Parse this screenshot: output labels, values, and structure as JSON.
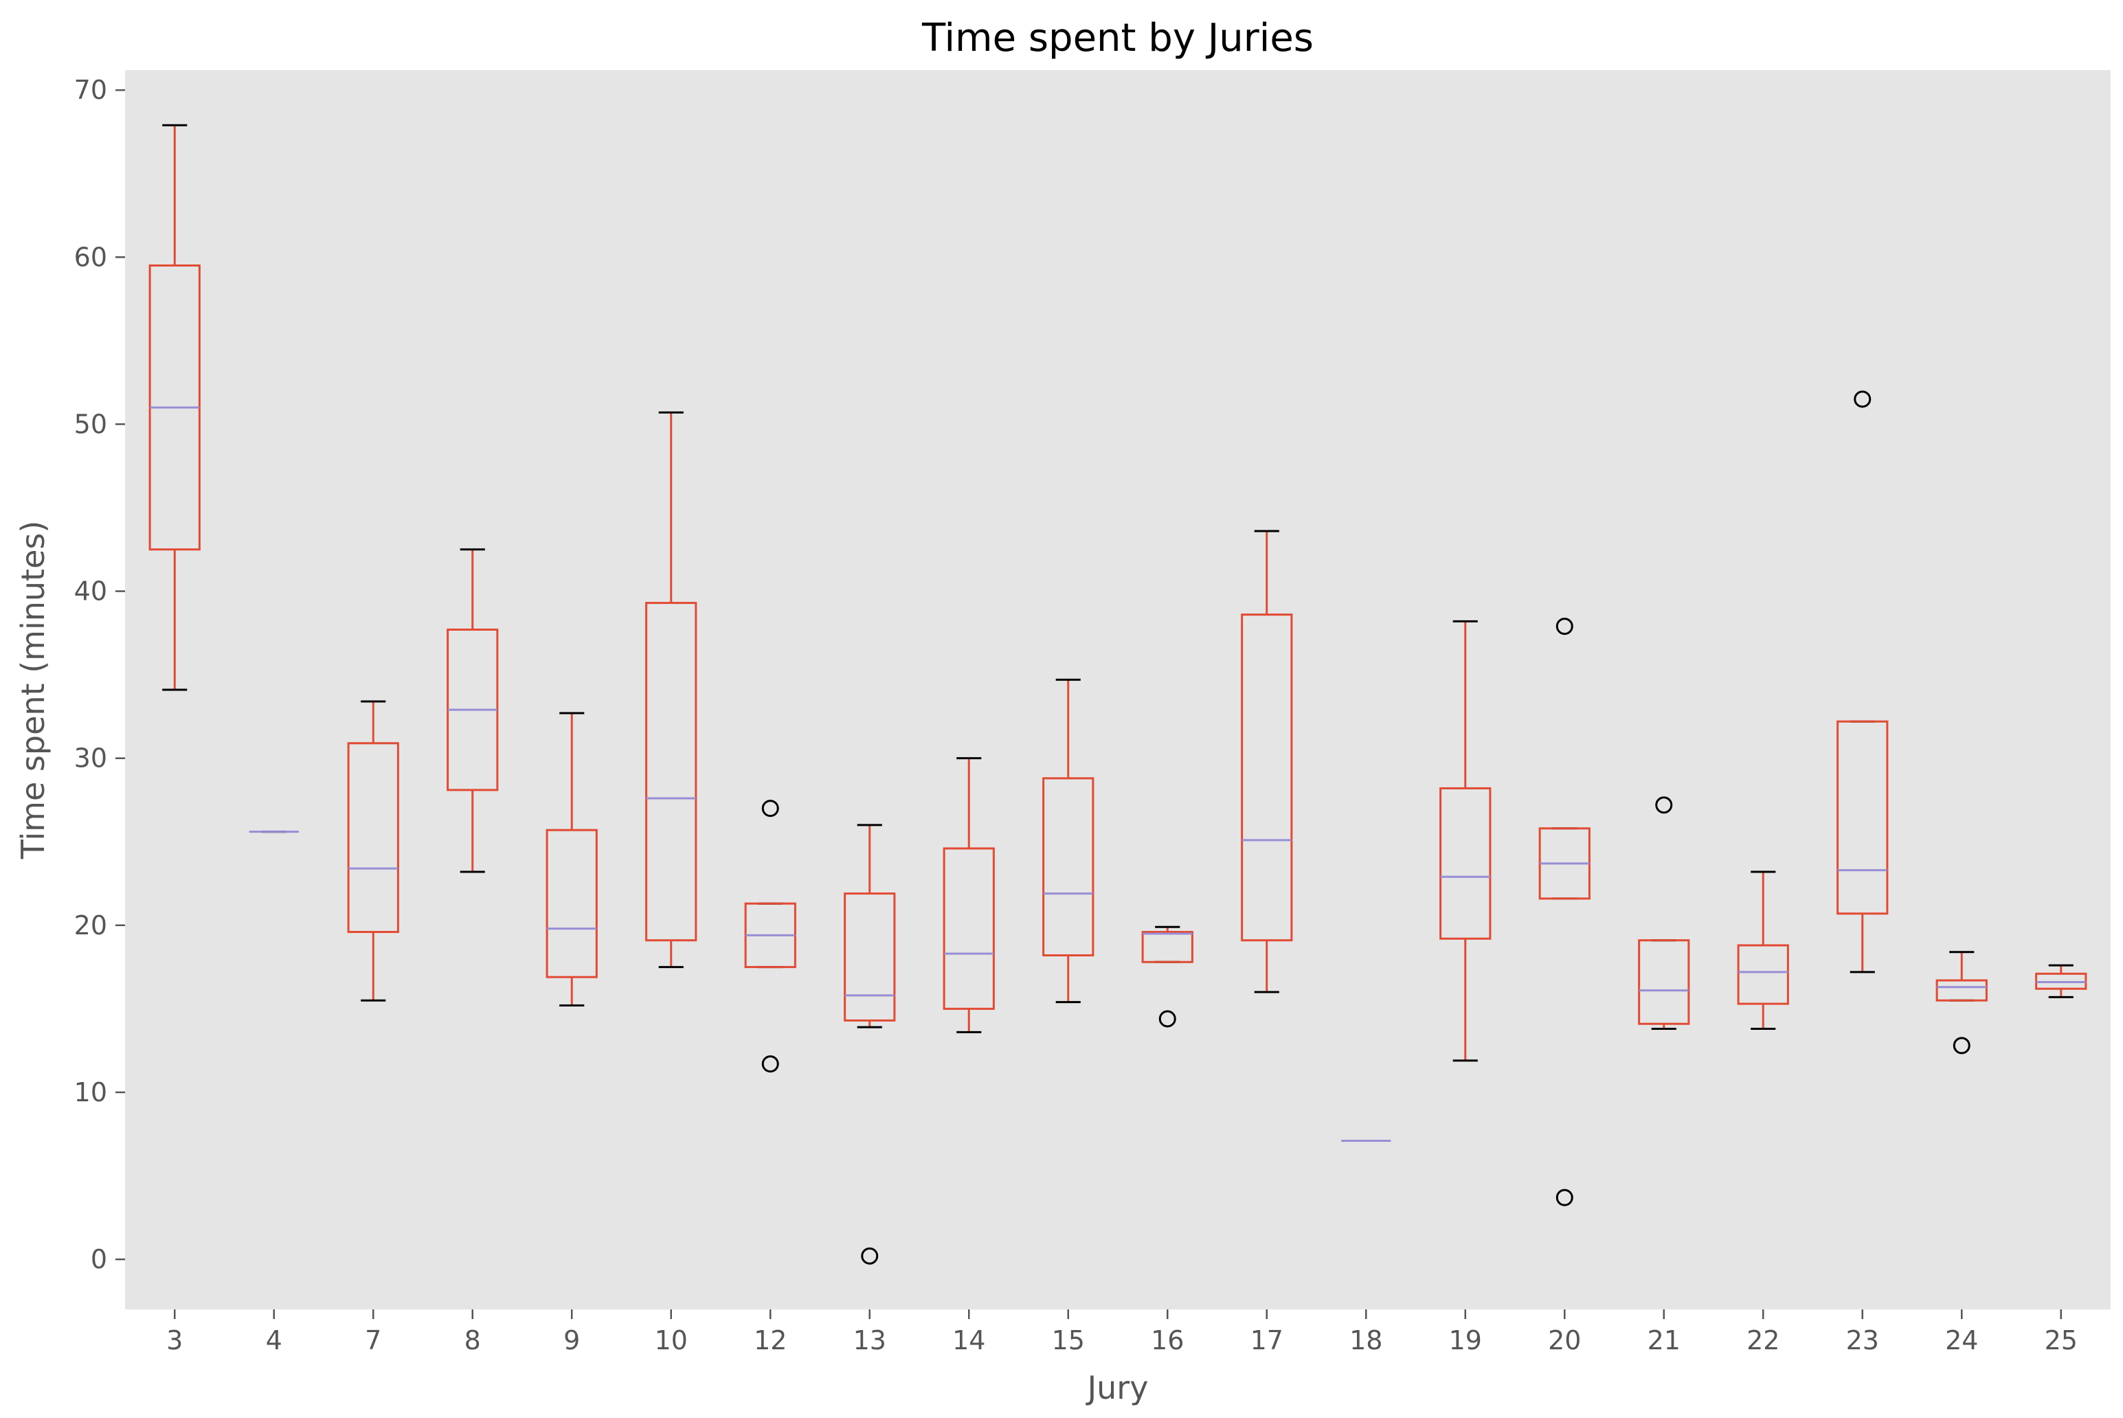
{
  "chart_data": {
    "type": "box",
    "title": "Time spent by Juries",
    "xlabel": "Jury",
    "ylabel": "Time spent (minutes)",
    "ylim": [
      -3,
      71.2
    ],
    "yticks": [
      0,
      10,
      20,
      30,
      40,
      50,
      60,
      70
    ],
    "grid": false,
    "colors": {
      "box": "#E24A33",
      "median": "#8EBA42",
      "median_display": "#988ED5",
      "whisker": "#E24A33",
      "cap": "#000000",
      "flier": "#000000",
      "background": "#E5E5E5"
    },
    "categories": [
      "3",
      "4",
      "7",
      "8",
      "9",
      "10",
      "12",
      "13",
      "14",
      "15",
      "16",
      "17",
      "18",
      "19",
      "20",
      "21",
      "22",
      "23",
      "24",
      "25"
    ],
    "boxes": [
      {
        "category": "3",
        "whislo": 34.1,
        "q1": 42.5,
        "med": 51.0,
        "q3": 59.5,
        "whishi": 67.9,
        "fliers": []
      },
      {
        "category": "4",
        "whislo": 25.6,
        "q1": 25.6,
        "med": 25.6,
        "q3": 25.6,
        "whishi": 25.6,
        "fliers": []
      },
      {
        "category": "7",
        "whislo": 15.5,
        "q1": 19.6,
        "med": 23.4,
        "q3": 30.9,
        "whishi": 33.4,
        "fliers": []
      },
      {
        "category": "8",
        "whislo": 23.2,
        "q1": 28.1,
        "med": 32.9,
        "q3": 37.7,
        "whishi": 42.5,
        "fliers": []
      },
      {
        "category": "9",
        "whislo": 15.2,
        "q1": 16.9,
        "med": 19.8,
        "q3": 25.7,
        "whishi": 32.7,
        "fliers": []
      },
      {
        "category": "10",
        "whislo": 17.5,
        "q1": 19.1,
        "med": 27.6,
        "q3": 39.3,
        "whishi": 50.7,
        "fliers": []
      },
      {
        "category": "12",
        "whislo": 17.5,
        "q1": 17.5,
        "med": 19.4,
        "q3": 21.3,
        "whishi": 21.3,
        "fliers": [
          27.0,
          11.7
        ]
      },
      {
        "category": "13",
        "whislo": 13.9,
        "q1": 14.3,
        "med": 15.8,
        "q3": 21.9,
        "whishi": 26.0,
        "fliers": [
          0.2
        ]
      },
      {
        "category": "14",
        "whislo": 13.6,
        "q1": 15.0,
        "med": 18.3,
        "q3": 24.6,
        "whishi": 30.0,
        "fliers": []
      },
      {
        "category": "15",
        "whislo": 15.4,
        "q1": 18.2,
        "med": 21.9,
        "q3": 28.8,
        "whishi": 34.7,
        "fliers": []
      },
      {
        "category": "16",
        "whislo": 17.8,
        "q1": 17.8,
        "med": 19.5,
        "q3": 19.6,
        "whishi": 19.9,
        "fliers": [
          14.4
        ]
      },
      {
        "category": "17",
        "whislo": 16.0,
        "q1": 19.1,
        "med": 25.1,
        "q3": 38.6,
        "whishi": 43.6,
        "fliers": []
      },
      {
        "category": "18",
        "whislo": 7.1,
        "q1": 7.1,
        "med": 7.1,
        "q3": 7.1,
        "whishi": 7.1,
        "fliers": []
      },
      {
        "category": "19",
        "whislo": 11.9,
        "q1": 19.2,
        "med": 22.9,
        "q3": 28.2,
        "whishi": 38.2,
        "fliers": []
      },
      {
        "category": "20",
        "whislo": 21.6,
        "q1": 21.6,
        "med": 23.7,
        "q3": 25.8,
        "whishi": 25.8,
        "fliers": [
          37.9,
          3.7
        ]
      },
      {
        "category": "21",
        "whislo": 13.8,
        "q1": 14.1,
        "med": 16.1,
        "q3": 19.1,
        "whishi": 19.1,
        "fliers": [
          27.2
        ]
      },
      {
        "category": "22",
        "whislo": 13.8,
        "q1": 15.3,
        "med": 17.2,
        "q3": 18.8,
        "whishi": 23.2,
        "fliers": []
      },
      {
        "category": "23",
        "whislo": 17.2,
        "q1": 20.7,
        "med": 23.3,
        "q3": 32.2,
        "whishi": 32.2,
        "fliers": [
          51.5
        ]
      },
      {
        "category": "24",
        "whislo": 15.5,
        "q1": 15.5,
        "med": 16.3,
        "q3": 16.7,
        "whishi": 18.4,
        "fliers": [
          12.8
        ]
      },
      {
        "category": "25",
        "whislo": 15.7,
        "q1": 16.2,
        "med": 16.6,
        "q3": 17.1,
        "whishi": 17.6,
        "fliers": []
      }
    ]
  }
}
